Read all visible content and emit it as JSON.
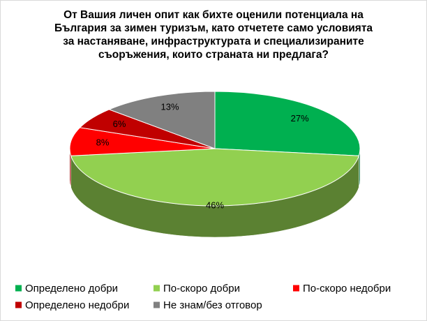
{
  "chart_data": {
    "type": "pie3d",
    "title": "От Вашия личен опит как бихте оценили потенциала на България за зимен туризъм, като отчетете само условията за настаняване,  инфраструктурата и специализираните съоръжения, които страната ни предлага?",
    "categories": [
      "Определено добри",
      "По-скоро добри",
      "По-скоро недобри",
      "Определено недобри",
      "Не знам/без отговор"
    ],
    "values": [
      27,
      46,
      8,
      6,
      13
    ],
    "value_labels": [
      "27%",
      "46%",
      "8%",
      "6%",
      "13%"
    ],
    "colors": [
      "#00b050",
      "#92d050",
      "#ff0000",
      "#c00000",
      "#808080"
    ],
    "legend": "bottom"
  }
}
